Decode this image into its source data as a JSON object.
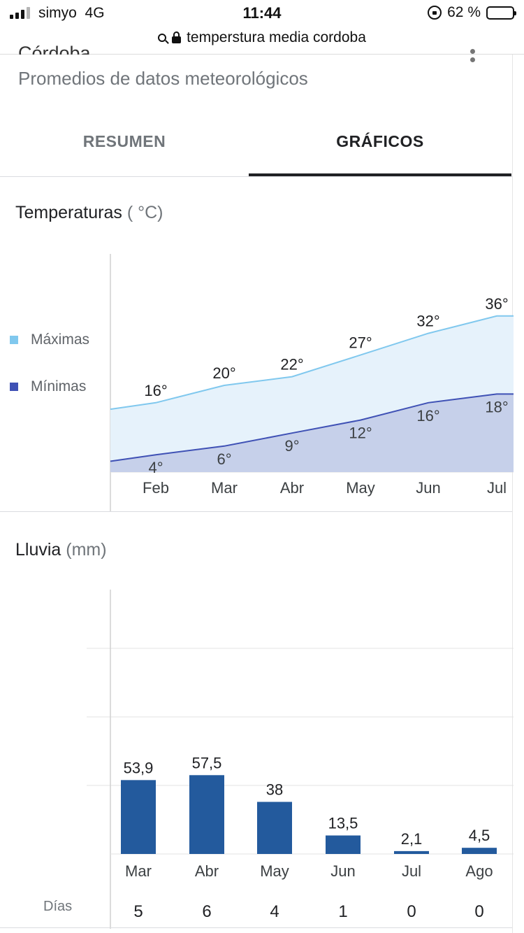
{
  "status_bar": {
    "carrier": "simyo",
    "network": "4G",
    "time": "11:44",
    "battery": "62 %",
    "battery_level": 0.62,
    "signal_bars_active": 3,
    "signal_bars_total": 4
  },
  "url_bar": {
    "query": "temperstura media cordoba",
    "icons": [
      "search-icon",
      "lock-icon"
    ]
  },
  "header": {
    "title": "Córdoba",
    "subtitle": "Promedios de datos meteorológicos"
  },
  "tabs": [
    {
      "label": "RESUMEN",
      "active": false
    },
    {
      "label": "GRÁFICOS",
      "active": true
    }
  ],
  "temperature_section": {
    "title": "Temperaturas",
    "unit": "( °C)",
    "legend": [
      {
        "label": "Máximas",
        "color": "#80c8ee"
      },
      {
        "label": "Mínimas",
        "color": "#3f51b5"
      }
    ]
  },
  "rain_section": {
    "title": "Lluvia",
    "unit": "(mm)",
    "days_label": "Días",
    "bar_color": "#235a9d"
  },
  "chart_data": [
    {
      "type": "area",
      "title": "Temperaturas",
      "categories": [
        "Feb",
        "Mar",
        "Abr",
        "May",
        "Jun",
        "Jul"
      ],
      "series": [
        {
          "name": "Máximas",
          "color": "#80c8ee",
          "values": [
            16,
            20,
            22,
            27,
            32,
            36
          ],
          "labels": [
            "16°",
            "20°",
            "22°",
            "27°",
            "32°",
            "36°"
          ]
        },
        {
          "name": "Mínimas",
          "color": "#3f51b5",
          "values": [
            4,
            6,
            9,
            12,
            16,
            18
          ],
          "labels": [
            "4°",
            "6°",
            "9°",
            "12°",
            "16°",
            "18°"
          ]
        }
      ]
    },
    {
      "type": "bar",
      "title": "Lluvia",
      "categories": [
        "Mar",
        "Abr",
        "May",
        "Jun",
        "Jul",
        "Ago"
      ],
      "values": [
        53.9,
        57.5,
        38,
        13.5,
        2.1,
        4.5
      ],
      "value_labels": [
        "53,9",
        "57,5",
        "38",
        "13,5",
        "2,1",
        "4,5"
      ],
      "days": [
        "5",
        "6",
        "4",
        "1",
        "0",
        "0"
      ],
      "ylim": [
        0,
        200
      ],
      "grid": true
    }
  ]
}
